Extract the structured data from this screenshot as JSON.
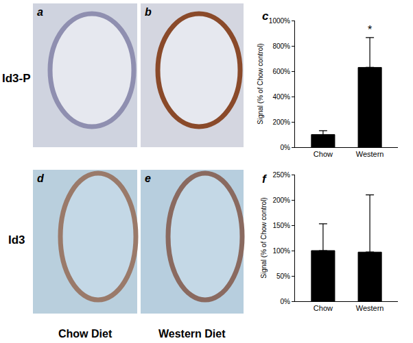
{
  "row_labels": [
    "Id3-P",
    "Id3"
  ],
  "column_labels": [
    "Chow Diet",
    "Western Diet"
  ],
  "image_panels": [
    [
      "a",
      "b"
    ],
    [
      "d",
      "e"
    ]
  ],
  "chart_data": [
    {
      "type": "bar",
      "title": "c",
      "y_label": "Signal (% of Chow control)",
      "categories": [
        "Chow",
        "Western"
      ],
      "values": [
        100,
        630
      ],
      "errors": [
        30,
        235
      ],
      "color": "#000000",
      "ylim": [
        0,
        1000
      ],
      "yticks": [
        {
          "value": 0,
          "label": "0%"
        },
        {
          "value": 200,
          "label": "200%"
        },
        {
          "value": 400,
          "label": "400%"
        },
        {
          "value": 600,
          "label": "600%"
        },
        {
          "value": 800,
          "label": "800%"
        },
        {
          "value": 1000,
          "label": "1000%"
        }
      ],
      "grid": false,
      "annotations": [
        {
          "category": "Western",
          "text": "*"
        }
      ]
    },
    {
      "type": "bar",
      "title": "f",
      "y_label": "Signal (% of Chow control)",
      "categories": [
        "Chow",
        "Western"
      ],
      "values": [
        100,
        97
      ],
      "errors": [
        53,
        113
      ],
      "color": "#000000",
      "ylim": [
        0,
        250
      ],
      "yticks": [
        {
          "value": 0,
          "label": "0%"
        },
        {
          "value": 50,
          "label": "50%"
        },
        {
          "value": 100,
          "label": "100%"
        },
        {
          "value": 150,
          "label": "150%"
        },
        {
          "value": 200,
          "label": "200%"
        },
        {
          "value": 250,
          "label": "250%"
        }
      ],
      "grid": false
    }
  ]
}
